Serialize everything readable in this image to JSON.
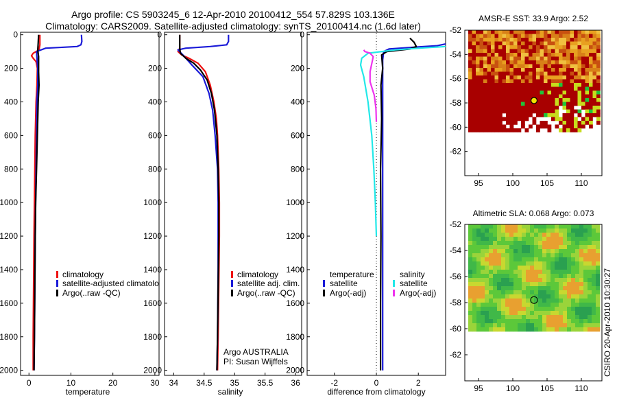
{
  "header": {
    "title_line1": "Argo profile: CS 5903245_6 12-Apr-2010 20100412_554 57.829S 103.136E",
    "title_line2": "Climatology: CARS2009. Satellite-adjusted climatology: synTS_20100414.nc (1.6d later)"
  },
  "footer_stamp": "CSIRO 20-Apr-2010 10:30:27",
  "colors": {
    "red": "#ee1111",
    "blue": "#1a1ad8",
    "black": "#000000",
    "cyan": "#22e8e8",
    "magenta": "#ee33ee"
  },
  "depth_ticks": [
    "0",
    "200",
    "400",
    "600",
    "800",
    "1000",
    "1200",
    "1400",
    "1600",
    "1800",
    "2000"
  ],
  "chart_data": [
    {
      "type": "line",
      "panel": "temperature",
      "xlabel": "temperature",
      "xlim": [
        -2,
        31
      ],
      "ylim": [
        2030,
        -15
      ],
      "xticks": [
        0,
        10,
        20,
        30
      ],
      "xticklabels": [
        "0",
        "10",
        "20",
        "30"
      ],
      "legend": [
        "climatology",
        "satellite-adjusted climatolo",
        "Argo(..raw -QC)"
      ],
      "series": [
        {
          "name": "climatology",
          "color": "red",
          "x": [
            2.6,
            2.6,
            2.4,
            1.0,
            0.6,
            1.0,
            1.7,
            2.0,
            1.9,
            1.7,
            1.5,
            1.4,
            1.3,
            1.2,
            1.1,
            1.0,
            1.0
          ],
          "y": [
            0,
            60,
            90,
            110,
            125,
            140,
            160,
            200,
            300,
            400,
            600,
            800,
            1000,
            1200,
            1500,
            1800,
            2000
          ]
        },
        {
          "name": "satellite-adjusted climatology",
          "color": "blue",
          "x": [
            12.5,
            12.6,
            12.4,
            11.5,
            4.0,
            1.8,
            1.9,
            2.1,
            2.1,
            1.9,
            1.8,
            1.7,
            1.6,
            1.5,
            1.4,
            1.3,
            1.2
          ],
          "y": [
            0,
            40,
            60,
            70,
            80,
            100,
            140,
            200,
            300,
            400,
            600,
            800,
            1000,
            1200,
            1500,
            1800,
            2000
          ]
        },
        {
          "name": "Argo(..raw -QC)",
          "color": "black",
          "x": [
            2.3,
            2.2,
            2.1,
            2.3,
            2.3,
            2.3,
            2.4,
            2.2,
            2.0,
            1.8,
            1.6,
            1.5,
            1.4,
            1.3,
            1.2
          ],
          "y": [
            0,
            50,
            90,
            130,
            160,
            220,
            300,
            400,
            600,
            800,
            1000,
            1200,
            1500,
            1800,
            2000
          ]
        }
      ]
    },
    {
      "type": "line",
      "panel": "salinity",
      "xlabel": "salinity",
      "xlim": [
        33.85,
        36.1
      ],
      "ylim": [
        2030,
        -15
      ],
      "xticks": [
        34,
        34.5,
        35,
        35.5,
        36
      ],
      "xticklabels": [
        "34",
        "34.5",
        "35",
        "35.5",
        "36"
      ],
      "legend": [
        "climatology",
        "satellite adj. clim.",
        "Argo(..raw -QC)"
      ],
      "annotation": [
        "Argo AUSTRALIA",
        "PI: Susan Wijffels"
      ],
      "series": [
        {
          "name": "climatology",
          "color": "red",
          "x": [
            34.1,
            34.1,
            34.07,
            34.13,
            34.25,
            34.4,
            34.52,
            34.6,
            34.66,
            34.7,
            34.72,
            34.74,
            34.75,
            34.75,
            34.74,
            34.73,
            34.72
          ],
          "y": [
            0,
            80,
            100,
            120,
            140,
            170,
            220,
            300,
            400,
            500,
            600,
            800,
            1000,
            1200,
            1500,
            1800,
            2000
          ]
        },
        {
          "name": "satellite adj. clim.",
          "color": "blue",
          "x": [
            34.9,
            34.9,
            34.87,
            34.6,
            34.2,
            34.07,
            34.15,
            34.3,
            34.48,
            34.58,
            34.64,
            34.68,
            34.72,
            34.73,
            34.73,
            34.72,
            34.71
          ],
          "y": [
            0,
            40,
            60,
            70,
            80,
            90,
            120,
            180,
            250,
            350,
            450,
            600,
            800,
            1000,
            1400,
            1800,
            2000
          ]
        },
        {
          "name": "Argo(..raw -QC)",
          "color": "black",
          "x": [
            34.1,
            34.1,
            34.11,
            34.2,
            34.33,
            34.44,
            34.55,
            34.62,
            34.67,
            34.71,
            34.73,
            34.74,
            34.74,
            34.73,
            34.72,
            34.71
          ],
          "y": [
            0,
            80,
            110,
            140,
            170,
            210,
            270,
            350,
            450,
            600,
            800,
            1000,
            1200,
            1500,
            1800,
            2000
          ]
        }
      ]
    },
    {
      "type": "line",
      "panel": "difference",
      "xlabel": "difference from climatology",
      "xlim": [
        -3.3,
        3.3
      ],
      "ylim": [
        2030,
        -15
      ],
      "xticks": [
        -2,
        0,
        2
      ],
      "xticklabels": [
        "-2",
        "0",
        "2"
      ],
      "legend_temperature": {
        "heading": "temperature",
        "items": [
          "satellite",
          "Argo(-adj)"
        ]
      },
      "legend_salinity": {
        "heading": "salinity",
        "items": [
          "satellite",
          "Argo(-adj)"
        ]
      },
      "series": [
        {
          "name": "temperature satellite",
          "color": "blue",
          "x": [
            3.3,
            2.9,
            2.0,
            0.6,
            0.35,
            0.3,
            0.3,
            0.3,
            0.3,
            0.3,
            0.3,
            0.3
          ],
          "y": [
            55,
            65,
            72,
            85,
            100,
            150,
            250,
            400,
            800,
            1200,
            1600,
            2000
          ]
        },
        {
          "name": "temperature Argo(-adj)",
          "color": "black",
          "x": [
            1.6,
            1.8,
            1.9,
            1.6,
            0.5,
            0.25,
            0.3,
            0.22,
            0.25,
            0.2,
            0.22,
            0.2,
            0.2
          ],
          "y": [
            20,
            45,
            70,
            85,
            100,
            120,
            200,
            300,
            500,
            800,
            1200,
            1600,
            2000
          ]
        },
        {
          "name": "salinity satellite",
          "color": "cyan",
          "x": [
            3.3,
            2.3,
            0.9,
            -0.4,
            -0.7,
            -0.75,
            -0.6,
            -0.4,
            -0.22,
            -0.12,
            -0.05,
            0.0
          ],
          "y": [
            70,
            78,
            90,
            110,
            140,
            180,
            250,
            400,
            600,
            800,
            1000,
            1200
          ]
        },
        {
          "name": "salinity Argo(-adj)",
          "color": "magenta",
          "x": [
            -0.6,
            -0.55,
            -0.3,
            -0.15,
            -0.2,
            -0.3,
            -0.3,
            -0.1,
            -0.02,
            0.0
          ],
          "y": [
            90,
            100,
            110,
            130,
            160,
            220,
            280,
            360,
            440,
            520
          ]
        }
      ]
    },
    {
      "type": "heatmap",
      "panel": "sst-map",
      "title": "AMSR-E SST: 33.9  Argo: 2.52",
      "xlim": [
        93,
        113
      ],
      "ylim": [
        -64,
        -52
      ],
      "xticks": [
        95,
        100,
        105,
        110
      ],
      "xticklabels": [
        "95",
        "100",
        "105",
        "110"
      ],
      "yticks": [
        -52,
        -54,
        -56,
        -58,
        -60,
        -62
      ],
      "yticklabels": [
        "-52",
        "-54",
        "-56",
        "-58",
        "-60",
        "-62"
      ],
      "data_extent": {
        "lon": [
          93.5,
          112.5
        ],
        "lat": [
          -60.2,
          -52
        ]
      },
      "marker": {
        "lon": 103.1,
        "lat": -57.8
      }
    },
    {
      "type": "heatmap",
      "panel": "sla-map",
      "title": "Altimetric SLA: 0.068  Argo: 0.073",
      "xlim": [
        93,
        113
      ],
      "ylim": [
        -64,
        -52
      ],
      "xticks": [
        95,
        100,
        105,
        110
      ],
      "xticklabels": [
        "95",
        "100",
        "105",
        "110"
      ],
      "yticks": [
        -52,
        -54,
        -56,
        -58,
        -60,
        -62
      ],
      "yticklabels": [
        "-52",
        "-54",
        "-56",
        "-58",
        "-60",
        "-62"
      ],
      "data_extent": {
        "lon": [
          93.5,
          112.5
        ],
        "lat": [
          -60,
          -52
        ]
      },
      "marker": {
        "lon": 103.1,
        "lat": -57.8
      }
    }
  ]
}
